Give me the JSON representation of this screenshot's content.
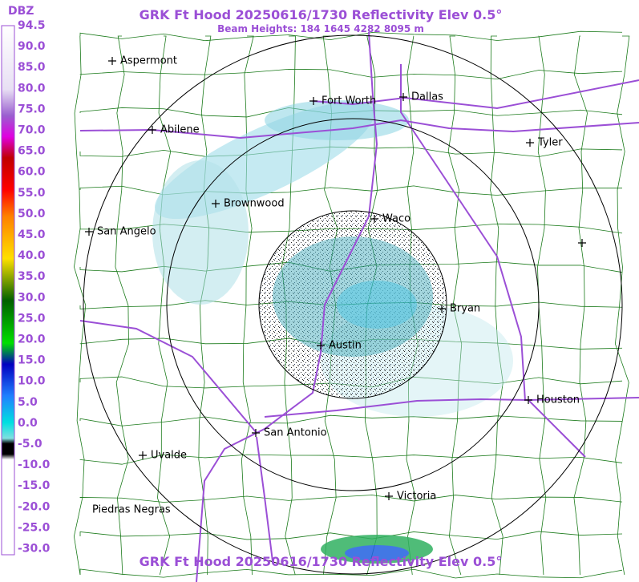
{
  "header": {
    "title": "GRK Ft Hood 20250616/1730 Reflectivity Elev 0.5°",
    "subtitle": "Beam Heights: 184 1645 4282 8095 m",
    "footer": "GRK Ft Hood 20250616/1730 Reflectivity Elev 0.5°"
  },
  "legend": {
    "unit": "DBZ",
    "labels": [
      "94.5",
      "90.0",
      "85.0",
      "80.0",
      "75.0",
      "70.0",
      "65.0",
      "60.0",
      "55.0",
      "50.0",
      "45.0",
      "40.0",
      "35.0",
      "30.0",
      "25.0",
      "20.0",
      "15.0",
      "10.0",
      "5.0",
      "0.0",
      "-5.0",
      "-10.0",
      "-15.0",
      "-20.0",
      "-25.0",
      "-30.0"
    ]
  },
  "cities": [
    {
      "name": "Aspermont"
    },
    {
      "name": "Fort Worth"
    },
    {
      "name": "Dallas"
    },
    {
      "name": "Abilene"
    },
    {
      "name": "Tyler"
    },
    {
      "name": "Brownwood"
    },
    {
      "name": "Waco"
    },
    {
      "name": "San Angelo"
    },
    {
      "name": "Bryan"
    },
    {
      "name": "Austin"
    },
    {
      "name": "Houston"
    },
    {
      "name": "San Antonio"
    },
    {
      "name": "Uvalde"
    },
    {
      "name": "Victoria"
    },
    {
      "name": "Piedras Negras"
    }
  ]
}
